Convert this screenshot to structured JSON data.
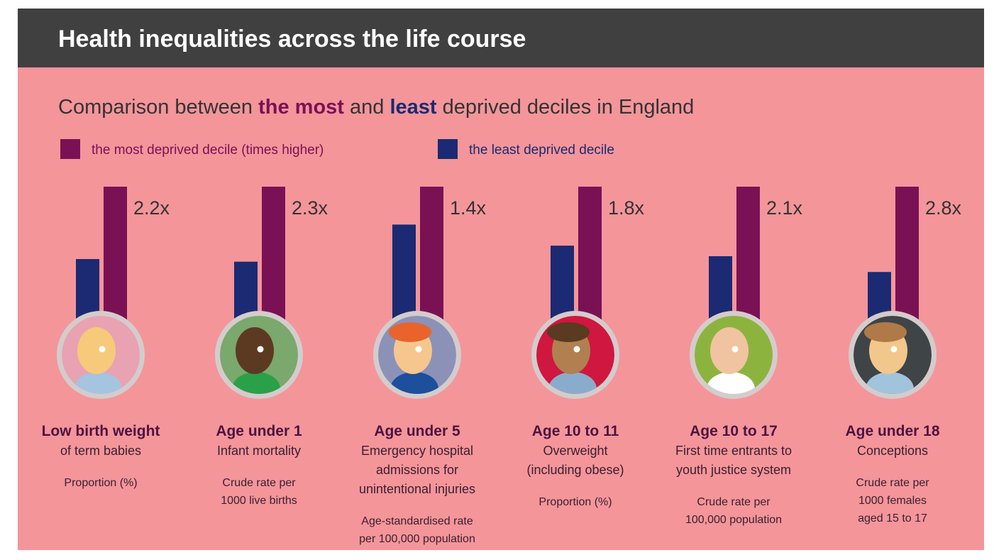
{
  "chart_data": {
    "type": "bar",
    "title": "Health inequalities across the life course",
    "subtitle": [
      "Comparison between ",
      "the most",
      " and ",
      "least",
      " deprived deciles in England"
    ],
    "categories": [
      "Low birth weight",
      "Age under 1",
      "Age under 5",
      "Age 10 to 11",
      "Age 10 to 17",
      "Age under 18"
    ],
    "descriptions": [
      [
        "of term babies"
      ],
      [
        "Infant mortality"
      ],
      [
        "Emergency hospital",
        "admissions for",
        "unintentional injuries"
      ],
      [
        "Overweight",
        "(including obese)"
      ],
      [
        "First time entrants to",
        "youth justice system"
      ],
      [
        "Conceptions"
      ]
    ],
    "measures": [
      [
        "Proportion (%)"
      ],
      [
        "Crude rate per",
        "1000 live births"
      ],
      [
        "Age-standardised rate",
        "per 100,000 population"
      ],
      [
        "Proportion (%)"
      ],
      [
        "Crude rate per",
        "100,000 population"
      ],
      [
        "Crude rate per",
        "1000 females",
        "aged 15 to 17"
      ]
    ],
    "series": [
      {
        "name": "the most deprived decile (times higher)",
        "color": "#7a1155",
        "values": [
          2.2,
          2.3,
          1.4,
          1.8,
          2.1,
          2.8
        ],
        "value_labels": [
          "2.2x",
          "2.3x",
          "1.4x",
          "1.8x",
          "2.1x",
          "2.8x"
        ]
      },
      {
        "name": "the least deprived decile",
        "color": "#1b2a72",
        "values": [
          1,
          1,
          1,
          1,
          1,
          1
        ]
      }
    ]
  }
}
